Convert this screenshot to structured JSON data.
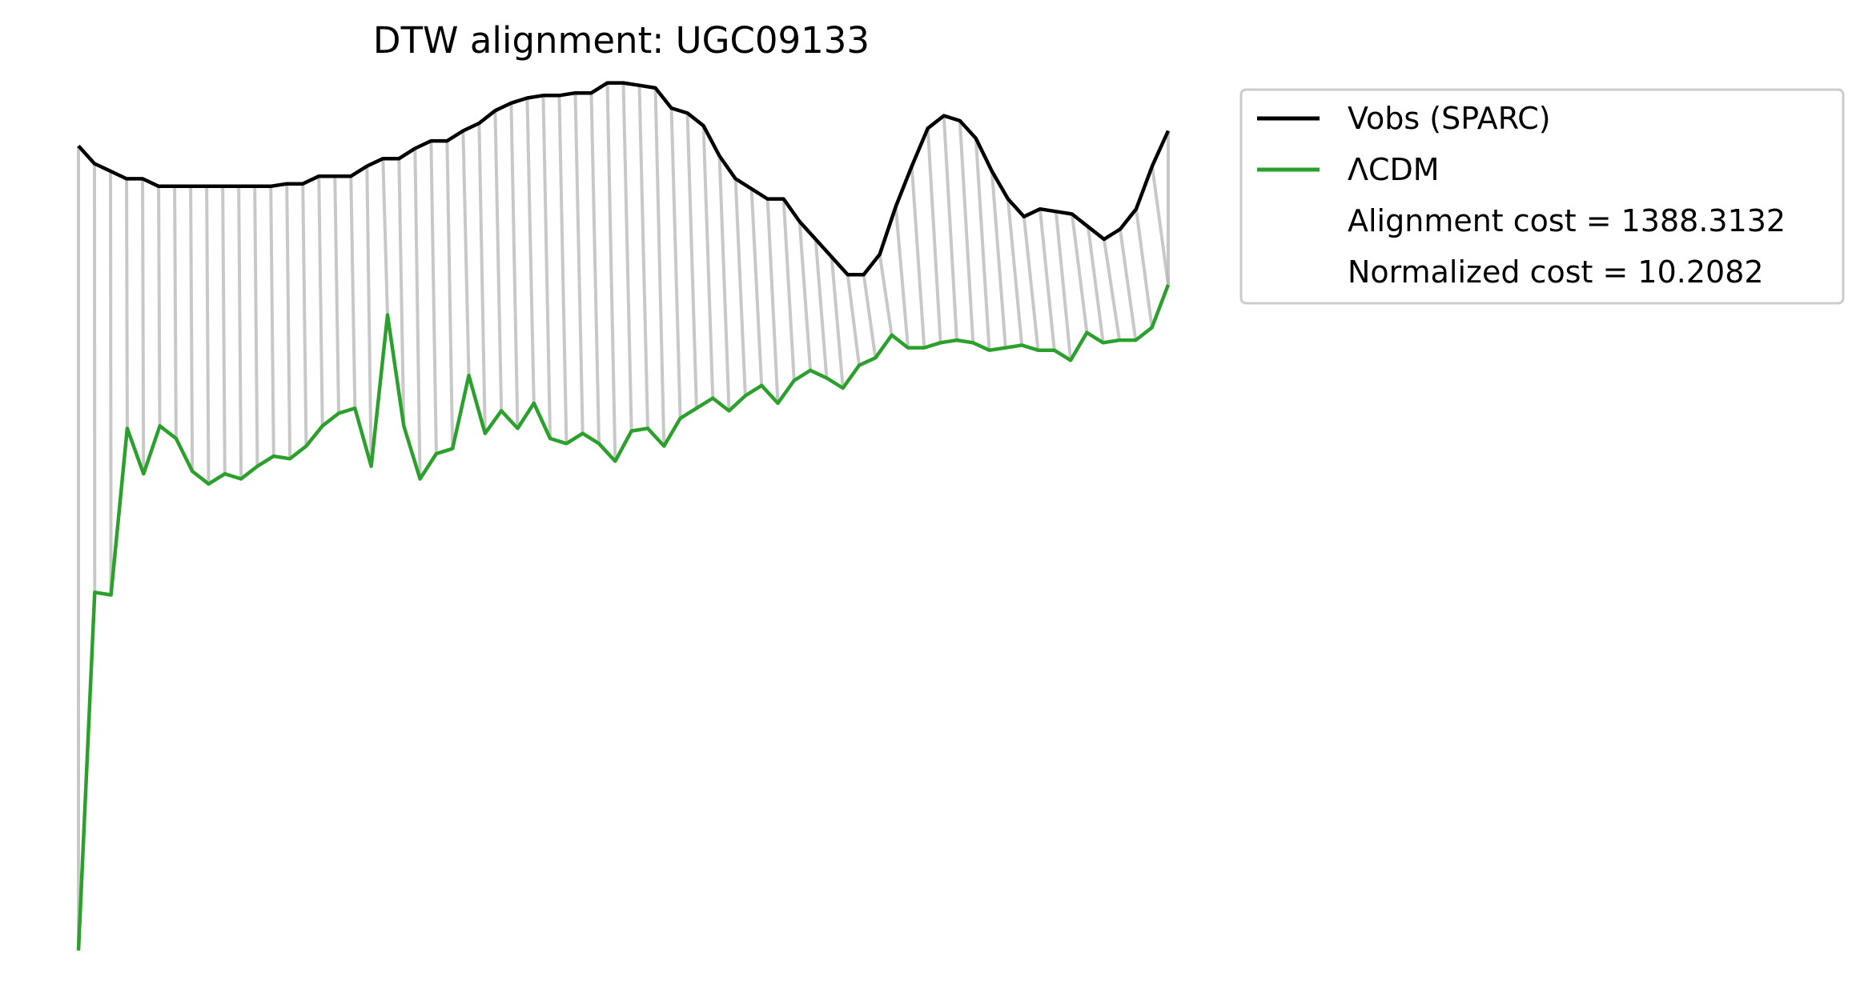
{
  "chart_data": {
    "type": "line",
    "title": "DTW alignment: UGC09133",
    "xlabel": "",
    "ylabel": "",
    "axes_visible": false,
    "grid": false,
    "legend_placement": "outside-top-right",
    "legend": {
      "entries": [
        "Vobs (SPARC)",
        "ΛCDM"
      ],
      "notes": [
        "Alignment cost = 1388.3132",
        "Normalized cost = 10.2082"
      ]
    },
    "colors": {
      "vobs": "#000000",
      "lcdm": "#2ca02c",
      "alignment": "#b0b0b0"
    },
    "series": [
      {
        "name": "Vobs (SPARC)",
        "values": [
          268,
          261,
          258,
          255,
          255,
          252,
          252,
          252,
          252,
          252,
          252,
          252,
          252,
          253,
          253,
          256,
          256,
          256,
          260,
          263,
          263,
          267,
          270,
          270,
          274,
          277,
          282,
          285,
          287,
          288,
          288,
          289,
          289,
          293,
          293,
          292,
          291,
          283,
          281,
          276,
          264,
          255,
          251,
          247,
          247,
          238,
          231,
          224,
          217,
          217,
          225,
          244,
          260,
          275,
          280,
          278,
          271,
          258,
          247,
          240,
          243,
          242,
          241,
          236,
          231,
          235,
          243,
          260,
          274
        ]
      },
      {
        "name": "ΛCDM",
        "values": [
          -51,
          91,
          90,
          156,
          138,
          157,
          152,
          139,
          134,
          138,
          136,
          141,
          145,
          144,
          149,
          157,
          162,
          164,
          141,
          201,
          157,
          136,
          146,
          148,
          177,
          154,
          163,
          156,
          166,
          152,
          150,
          154,
          150,
          143,
          155,
          156,
          149,
          160,
          164,
          168,
          163,
          169,
          173,
          166,
          175,
          179,
          176,
          172,
          181,
          184,
          193,
          188,
          188,
          190,
          191,
          190,
          187,
          188,
          189,
          187,
          187,
          183,
          194,
          190,
          191,
          191,
          196,
          213
        ]
      }
    ]
  }
}
